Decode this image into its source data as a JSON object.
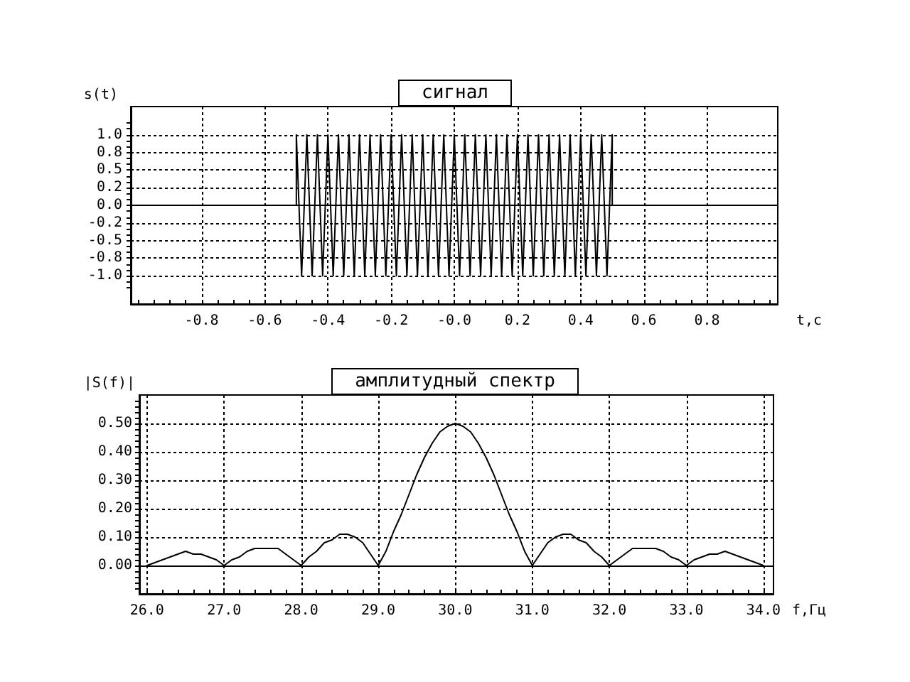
{
  "chart_data": [
    {
      "type": "line",
      "title": "сигнал",
      "xlabel": "t,с",
      "ylabel": "s(t)",
      "x": [
        -0.5,
        -0.5,
        -0.4833,
        -0.4667,
        -0.45,
        -0.4333,
        -0.4167,
        -0.4,
        -0.3833,
        -0.3667,
        -0.35,
        -0.3333,
        -0.3167,
        -0.3,
        -0.2833,
        -0.2667,
        -0.25,
        -0.2333,
        -0.2167,
        -0.2,
        -0.1833,
        -0.1667,
        -0.15,
        -0.1333,
        -0.1167,
        -0.1,
        -0.0833,
        -0.0667,
        -0.05,
        -0.0333,
        -0.0167,
        0,
        0.0167,
        0.0333,
        0.05,
        0.0667,
        0.0833,
        0.1,
        0.1167,
        0.1333,
        0.15,
        0.1667,
        0.1833,
        0.2,
        0.2167,
        0.2333,
        0.25,
        0.2667,
        0.2833,
        0.3,
        0.3167,
        0.3333,
        0.35,
        0.3667,
        0.3833,
        0.4,
        0.4167,
        0.4333,
        0.45,
        0.4667,
        0.4833,
        0.5,
        0.5
      ],
      "values": [
        0,
        1,
        -1,
        1,
        -1,
        1,
        -1,
        1,
        -1,
        1,
        -1,
        1,
        -1,
        1,
        -1,
        1,
        -1,
        1,
        -1,
        1,
        -1,
        1,
        -1,
        1,
        -1,
        1,
        -1,
        1,
        -1,
        1,
        -1,
        1,
        -1,
        1,
        -1,
        1,
        -1,
        1,
        -1,
        1,
        -1,
        1,
        -1,
        1,
        -1,
        1,
        -1,
        1,
        -1,
        1,
        -1,
        1,
        -1,
        1,
        -1,
        1,
        -1,
        1,
        -1,
        1,
        -1,
        1,
        0
      ],
      "color": "#000000",
      "xlim": [
        -1.024,
        1.024
      ],
      "ylim": [
        -1.4,
        1.4
      ],
      "xticks": [
        {
          "value": -1,
          "label": null
        },
        {
          "value": -0.95,
          "label": null
        },
        {
          "value": -0.9,
          "label": null
        },
        {
          "value": -0.85,
          "label": null
        },
        -0.8,
        {
          "value": -0.75,
          "label": null
        },
        {
          "value": -0.7,
          "label": null
        },
        {
          "value": -0.65,
          "label": null
        },
        -0.6,
        {
          "value": -0.55,
          "label": null
        },
        {
          "value": -0.5,
          "label": null
        },
        {
          "value": -0.45,
          "label": null
        },
        -0.4,
        {
          "value": -0.35,
          "label": null
        },
        {
          "value": -0.3,
          "label": null
        },
        {
          "value": -0.25,
          "label": null
        },
        -0.2,
        {
          "value": -0.15,
          "label": null
        },
        {
          "value": -0.1,
          "label": null
        },
        {
          "value": -0.05,
          "label": null
        },
        {
          "value": 0,
          "label": "-0.0"
        },
        {
          "value": 0.05,
          "label": null
        },
        {
          "value": 0.1,
          "label": null
        },
        {
          "value": 0.15,
          "label": null
        },
        0.2,
        {
          "value": 0.25,
          "label": null
        },
        {
          "value": 0.3,
          "label": null
        },
        {
          "value": 0.35,
          "label": null
        },
        0.4,
        {
          "value": 0.45,
          "label": null
        },
        {
          "value": 0.5,
          "label": null
        },
        {
          "value": 0.55,
          "label": null
        },
        0.6,
        {
          "value": 0.65,
          "label": null
        },
        {
          "value": 0.7,
          "label": null
        },
        {
          "value": 0.75,
          "label": null
        },
        0.8,
        {
          "value": 0.85,
          "label": null
        },
        {
          "value": 0.9,
          "label": null
        },
        {
          "value": 0.95,
          "label": null
        },
        {
          "value": 1,
          "label": null
        }
      ],
      "yticks": [
        {
          "value": -1.1667,
          "label": null
        },
        {
          "value": -1.0833,
          "label": null
        },
        {
          "value": -1,
          "label": "-1.0"
        },
        {
          "value": -0.9167,
          "label": null
        },
        {
          "value": -0.8333,
          "label": null
        },
        {
          "value": -0.75,
          "label": "-0.8"
        },
        {
          "value": -0.6667,
          "label": null
        },
        {
          "value": -0.5833,
          "label": null
        },
        {
          "value": -0.5,
          "label": "-0.5"
        },
        {
          "value": -0.4167,
          "label": null
        },
        {
          "value": -0.3333,
          "label": null
        },
        {
          "value": -0.25,
          "label": "-0.2"
        },
        {
          "value": -0.1667,
          "label": null
        },
        {
          "value": -0.0833,
          "label": null
        },
        {
          "value": 0,
          "label": "0.0"
        },
        {
          "value": 0.0833,
          "label": null
        },
        {
          "value": 0.1667,
          "label": null
        },
        {
          "value": 0.25,
          "label": "0.2"
        },
        {
          "value": 0.3333,
          "label": null
        },
        {
          "value": 0.4167,
          "label": null
        },
        {
          "value": 0.5,
          "label": "0.5"
        },
        {
          "value": 0.5833,
          "label": null
        },
        {
          "value": 0.6667,
          "label": null
        },
        {
          "value": 0.75,
          "label": "0.8"
        },
        {
          "value": 0.8333,
          "label": null
        },
        {
          "value": 0.9167,
          "label": null
        },
        {
          "value": 1,
          "label": "1.0"
        },
        {
          "value": 1.0833,
          "label": null
        },
        {
          "value": 1.1667,
          "label": null
        }
      ],
      "grid": true,
      "marker": "none",
      "line_style": "solid",
      "ref_lines": [
        {
          "axis": "y",
          "value": 0,
          "color": "#000000"
        }
      ]
    },
    {
      "type": "line",
      "title": "амплитудный спектр",
      "xlabel": "f,Гц",
      "ylabel": "|S(f)|",
      "x": [
        26,
        26.1,
        26.2,
        26.3,
        26.4,
        26.5,
        26.6,
        26.7,
        26.8,
        26.9,
        27,
        27.1,
        27.2,
        27.3,
        27.4,
        27.5,
        27.6,
        27.7,
        27.8,
        27.9,
        28,
        28.1,
        28.2,
        28.3,
        28.4,
        28.5,
        28.6,
        28.7,
        28.8,
        28.9,
        29,
        29.1,
        29.2,
        29.3,
        29.4,
        29.5,
        29.6,
        29.7,
        29.8,
        29.9,
        30,
        30.1,
        30.2,
        30.3,
        30.4,
        30.5,
        30.6,
        30.7,
        30.8,
        30.9,
        31,
        31.1,
        31.2,
        31.3,
        31.4,
        31.5,
        31.6,
        31.7,
        31.8,
        31.9,
        32,
        32.1,
        32.2,
        32.3,
        32.4,
        32.5,
        32.6,
        32.7,
        32.8,
        32.9,
        33,
        33.1,
        33.2,
        33.3,
        33.4,
        33.5,
        33.6,
        33.7,
        33.8,
        33.9,
        34
      ],
      "values": [
        0,
        0.01,
        0.02,
        0.03,
        0.04,
        0.05,
        0.04,
        0.04,
        0.03,
        0.02,
        0,
        0.02,
        0.03,
        0.05,
        0.06,
        0.06,
        0.06,
        0.06,
        0.04,
        0.02,
        0,
        0.03,
        0.05,
        0.08,
        0.09,
        0.11,
        0.11,
        0.1,
        0.08,
        0.04,
        0,
        0.05,
        0.12,
        0.18,
        0.25,
        0.32,
        0.38,
        0.43,
        0.47,
        0.49,
        0.5,
        0.49,
        0.47,
        0.43,
        0.38,
        0.32,
        0.25,
        0.18,
        0.12,
        0.05,
        0,
        0.04,
        0.08,
        0.1,
        0.11,
        0.11,
        0.09,
        0.08,
        0.05,
        0.03,
        0,
        0.02,
        0.04,
        0.06,
        0.06,
        0.06,
        0.06,
        0.05,
        0.03,
        0.02,
        0,
        0.02,
        0.03,
        0.04,
        0.04,
        0.05,
        0.04,
        0.03,
        0.02,
        0.01,
        0
      ],
      "color": "#000000",
      "xlim": [
        25.9,
        34.13
      ],
      "ylim": [
        -0.1,
        0.6
      ],
      "xticks": [
        {
          "value": 26,
          "label": "26.0"
        },
        {
          "value": 26.2,
          "label": null
        },
        {
          "value": 26.4,
          "label": null
        },
        {
          "value": 26.6,
          "label": null
        },
        {
          "value": 26.8,
          "label": null
        },
        {
          "value": 27,
          "label": "27.0"
        },
        {
          "value": 27.2,
          "label": null
        },
        {
          "value": 27.4,
          "label": null
        },
        {
          "value": 27.6,
          "label": null
        },
        {
          "value": 27.8,
          "label": null
        },
        {
          "value": 28,
          "label": "28.0"
        },
        {
          "value": 28.2,
          "label": null
        },
        {
          "value": 28.4,
          "label": null
        },
        {
          "value": 28.6,
          "label": null
        },
        {
          "value": 28.8,
          "label": null
        },
        {
          "value": 29,
          "label": "29.0"
        },
        {
          "value": 29.2,
          "label": null
        },
        {
          "value": 29.4,
          "label": null
        },
        {
          "value": 29.6,
          "label": null
        },
        {
          "value": 29.8,
          "label": null
        },
        {
          "value": 30,
          "label": "30.0"
        },
        {
          "value": 30.2,
          "label": null
        },
        {
          "value": 30.4,
          "label": null
        },
        {
          "value": 30.6,
          "label": null
        },
        {
          "value": 30.8,
          "label": null
        },
        {
          "value": 31,
          "label": "31.0"
        },
        {
          "value": 31.2,
          "label": null
        },
        {
          "value": 31.4,
          "label": null
        },
        {
          "value": 31.6,
          "label": null
        },
        {
          "value": 31.8,
          "label": null
        },
        {
          "value": 32,
          "label": "32.0"
        },
        {
          "value": 32.2,
          "label": null
        },
        {
          "value": 32.4,
          "label": null
        },
        {
          "value": 32.6,
          "label": null
        },
        {
          "value": 32.8,
          "label": null
        },
        {
          "value": 33,
          "label": "33.0"
        },
        {
          "value": 33.2,
          "label": null
        },
        {
          "value": 33.4,
          "label": null
        },
        {
          "value": 33.6,
          "label": null
        },
        {
          "value": 33.8,
          "label": null
        },
        {
          "value": 34,
          "label": "34.0"
        }
      ],
      "yticks": [
        {
          "value": -0.08,
          "label": null
        },
        {
          "value": -0.06,
          "label": null
        },
        {
          "value": -0.04,
          "label": null
        },
        {
          "value": -0.02,
          "label": null
        },
        {
          "value": 0,
          "label": "0.00"
        },
        {
          "value": 0.02,
          "label": null
        },
        {
          "value": 0.04,
          "label": null
        },
        {
          "value": 0.06,
          "label": null
        },
        {
          "value": 0.08,
          "label": null
        },
        {
          "value": 0.1,
          "label": "0.10"
        },
        {
          "value": 0.12,
          "label": null
        },
        {
          "value": 0.14,
          "label": null
        },
        {
          "value": 0.16,
          "label": null
        },
        {
          "value": 0.18,
          "label": null
        },
        {
          "value": 0.2,
          "label": "0.20"
        },
        {
          "value": 0.22,
          "label": null
        },
        {
          "value": 0.24,
          "label": null
        },
        {
          "value": 0.26,
          "label": null
        },
        {
          "value": 0.28,
          "label": null
        },
        {
          "value": 0.3,
          "label": "0.30"
        },
        {
          "value": 0.32,
          "label": null
        },
        {
          "value": 0.34,
          "label": null
        },
        {
          "value": 0.36,
          "label": null
        },
        {
          "value": 0.38,
          "label": null
        },
        {
          "value": 0.4,
          "label": "0.40"
        },
        {
          "value": 0.42,
          "label": null
        },
        {
          "value": 0.44,
          "label": null
        },
        {
          "value": 0.46,
          "label": null
        },
        {
          "value": 0.48,
          "label": null
        },
        {
          "value": 0.5,
          "label": "0.50"
        },
        {
          "value": 0.52,
          "label": null
        },
        {
          "value": 0.54,
          "label": null
        },
        {
          "value": 0.56,
          "label": null
        },
        {
          "value": 0.58,
          "label": null
        }
      ],
      "grid": true,
      "marker": "none",
      "line_style": "solid",
      "ref_lines": [
        {
          "axis": "y",
          "value": 0,
          "color": "#000000"
        }
      ]
    }
  ]
}
